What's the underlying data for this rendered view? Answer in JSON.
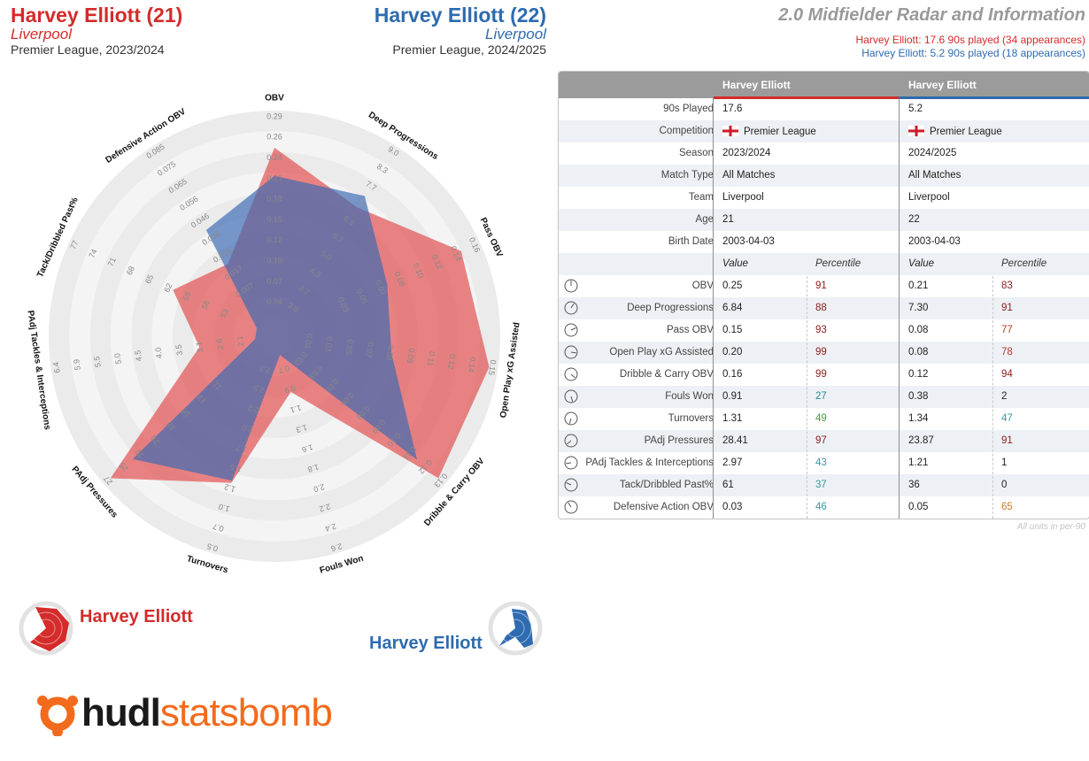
{
  "header": {
    "player1": {
      "name": "Harvey Elliott (21)",
      "team": "Liverpool",
      "competition": "Premier League, 2023/2024",
      "color": "#d42b2b"
    },
    "player2": {
      "name": "Harvey Elliott (22)",
      "team": "Liverpool",
      "competition": "Premier League, 2024/2025",
      "color": "#2e6bb0"
    },
    "title": "2.0 Midfielder Radar and Information",
    "sub1": "Harvey Elliott: 17.6 90s played (34 appearances)",
    "sub2": "Harvey Elliott: 5.2 90s played (18 appearances)"
  },
  "chart_data": {
    "type": "radar",
    "axes": [
      {
        "label": "OBV",
        "ticks": [
          "0.04",
          "0.07",
          "0.10",
          "0.12",
          "0.15",
          "0.18",
          "0.21",
          "0.24",
          "0.26",
          "0.29"
        ],
        "min": 0.01,
        "max": 0.29,
        "v1": 0.25,
        "v2": 0.21
      },
      {
        "label": "Deep Progressions",
        "ticks": [
          "3.0",
          "3.7",
          "4.3",
          "5.0",
          "5.7",
          "6.3",
          "7.0",
          "7.7",
          "8.3",
          "9.0"
        ],
        "min": 2.3,
        "max": 9.0,
        "v1": 6.84,
        "v2": 7.3
      },
      {
        "label": "Pass OBV",
        "ticks": [
          "0.03",
          "0.05",
          "0.07",
          "0.08",
          "0.10",
          "0.12",
          "0.14",
          "0.16"
        ],
        "min": -0.01,
        "max": 0.16,
        "v1": 0.15,
        "v2": 0.08
      },
      {
        "label": "Open Play xG Assisted",
        "ticks": [
          "0.01",
          "0.03",
          "0.05",
          "0.07",
          "0.08",
          "0.09",
          "0.11",
          "0.12",
          "0.14",
          "0.15"
        ],
        "min": 0.0,
        "max": 0.16,
        "v1": 0.2,
        "v2": 0.08
      },
      {
        "label": "Dribble & Carry OBV",
        "ticks": [
          "0.02",
          "0.03",
          "0.05",
          "0.06",
          "0.08",
          "0.09",
          "0.10",
          "0.11",
          "0.12",
          "0.13"
        ],
        "min": 0.0,
        "max": 0.14,
        "v1": 0.16,
        "v2": 0.12
      },
      {
        "label": "Fouls Won",
        "ticks": [
          "0.7",
          "0.9",
          "1.1",
          "1.3",
          "1.6",
          "1.8",
          "2.0",
          "2.2",
          "2.4",
          "2.6"
        ],
        "min": 0.5,
        "max": 2.6,
        "v1": 0.91,
        "v2": 0.38
      },
      {
        "label": "Turnovers",
        "ticks": [
          "2.7",
          "2.5",
          "2.2",
          "2.0",
          "1.7",
          "1.5",
          "1.2",
          "1.0",
          "0.7",
          "0.5"
        ],
        "min": 3.0,
        "max": 0.5,
        "v1": 1.31,
        "v2": 1.34
      },
      {
        "label": "PAdj Pressures",
        "ticks": [
          "11",
          "13",
          "16",
          "18",
          "20",
          "22",
          "25",
          "27"
        ],
        "min": 6,
        "max": 27,
        "v1": 28.41,
        "v2": 23.87
      },
      {
        "label": "PAdj Tackles & Interceptions",
        "ticks": [
          "2.1",
          "2.6",
          "3.1",
          "3.5",
          "4.0",
          "4.5",
          "5.0",
          "5.5",
          "5.9",
          "6.4"
        ],
        "min": 1.6,
        "max": 6.4,
        "v1": 2.97,
        "v2": 1.21
      },
      {
        "label": "Tack/Dribbled Past%",
        "ticks": [
          "53",
          "56",
          "59",
          "62",
          "65",
          "68",
          "71",
          "74",
          "77"
        ],
        "min": 47,
        "max": 77,
        "v1": 61,
        "v2": 36
      },
      {
        "label": "Defensive Action OBV",
        "ticks": [
          "0.007",
          "0.017",
          "0.026",
          "0.036",
          "0.046",
          "0.056",
          "0.065",
          "0.075",
          "0.085"
        ],
        "min": -0.003,
        "max": 0.095,
        "v1": 0.03,
        "v2": 0.05
      }
    ]
  },
  "table": {
    "col1": "Harvey Elliott",
    "col2": "Harvey Elliott",
    "info": [
      {
        "label": "90s Played",
        "v1": "17.6",
        "v2": "5.2"
      },
      {
        "label": "Competition",
        "v1": "Premier League",
        "v2": "Premier League"
      },
      {
        "label": "Season",
        "v1": "2023/2024",
        "v2": "2024/2025"
      },
      {
        "label": "Match Type",
        "v1": "All Matches",
        "v2": "All Matches"
      },
      {
        "label": "Team",
        "v1": "Liverpool",
        "v2": "Liverpool"
      },
      {
        "label": "Age",
        "v1": "21",
        "v2": "22"
      },
      {
        "label": "Birth Date",
        "v1": "2003-04-03",
        "v2": "2003-04-03"
      }
    ],
    "value_label": "Value",
    "percentile_label": "Percentile",
    "metrics": [
      {
        "label": "OBV",
        "v1": "0.25",
        "p1": "91",
        "c1": "#8b1a1a",
        "v2": "0.21",
        "p2": "83",
        "c2": "#8b1a1a"
      },
      {
        "label": "Deep Progressions",
        "v1": "6.84",
        "p1": "88",
        "c1": "#8b1a1a",
        "v2": "7.30",
        "p2": "91",
        "c2": "#8b1a1a"
      },
      {
        "label": "Pass OBV",
        "v1": "0.15",
        "p1": "93",
        "c1": "#8b1a1a",
        "v2": "0.08",
        "p2": "77",
        "c2": "#b03a2e"
      },
      {
        "label": "Open Play xG Assisted",
        "v1": "0.20",
        "p1": "99",
        "c1": "#8b1a1a",
        "v2": "0.08",
        "p2": "78",
        "c2": "#b03a2e"
      },
      {
        "label": "Dribble & Carry OBV",
        "v1": "0.16",
        "p1": "99",
        "c1": "#8b1a1a",
        "v2": "0.12",
        "p2": "94",
        "c2": "#8b1a1a"
      },
      {
        "label": "Fouls Won",
        "v1": "0.91",
        "p1": "27",
        "c1": "#2a8a9a",
        "v2": "0.38",
        "p2": "2",
        "c2": "#222222"
      },
      {
        "label": "Turnovers",
        "v1": "1.31",
        "p1": "49",
        "c1": "#4a9a4a",
        "v2": "1.34",
        "p2": "47",
        "c2": "#3a9aa0"
      },
      {
        "label": "PAdj Pressures",
        "v1": "28.41",
        "p1": "97",
        "c1": "#8b1a1a",
        "v2": "23.87",
        "p2": "91",
        "c2": "#8b1a1a"
      },
      {
        "label": "PAdj Tackles & Interceptions",
        "v1": "2.97",
        "p1": "43",
        "c1": "#3a9aa0",
        "v2": "1.21",
        "p2": "1",
        "c2": "#222222"
      },
      {
        "label": "Tack/Dribbled Past%",
        "v1": "61",
        "p1": "37",
        "c1": "#3a9aa0",
        "v2": "36",
        "p2": "0",
        "c2": "#222222"
      },
      {
        "label": "Defensive Action OBV",
        "v1": "0.03",
        "p1": "46",
        "c1": "#3a9aa0",
        "v2": "0.05",
        "p2": "65",
        "c2": "#c87a2a"
      }
    ],
    "footnote": "All units in per-90"
  },
  "legend": {
    "p1": "Harvey Elliott",
    "p2": "Harvey Elliott"
  },
  "logo": {
    "part1": "hudl",
    "part2": "statsbomb"
  }
}
